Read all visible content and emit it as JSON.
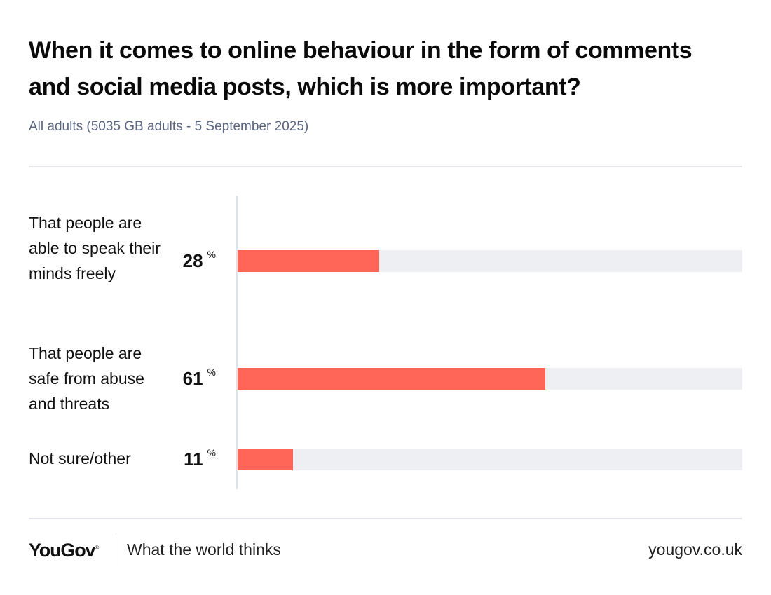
{
  "title": "When it comes to online behaviour in the form of comments and social media posts, which is more important?",
  "subtitle": "All adults (5035 GB adults - 5 September 2025)",
  "colors": {
    "bar": "#ff6658",
    "track": "#eeeff2"
  },
  "chart_data": {
    "type": "bar",
    "orientation": "horizontal",
    "categories": [
      "That people are able to speak their minds freely",
      "That people are safe from abuse and threats",
      "Not sure/other"
    ],
    "values": [
      28,
      61,
      11
    ],
    "value_labels": [
      "28",
      "61",
      "11"
    ],
    "unit": "%",
    "xlim": [
      0,
      100
    ],
    "grid": false
  },
  "footer": {
    "logo": "YouGov",
    "logo_mark": "®",
    "tagline": "What the world thinks",
    "site": "yougov.co.uk"
  }
}
